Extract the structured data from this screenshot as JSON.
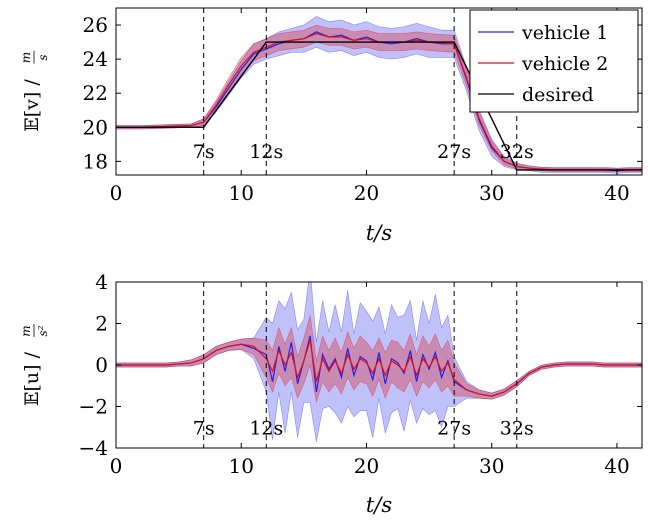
{
  "chart_data": [
    {
      "type": "line",
      "ylabel": {
        "main": "𝔼[v] / ",
        "num": "m",
        "den": "s"
      },
      "xlabel": "t/s",
      "xlim": [
        0,
        42
      ],
      "ylim": [
        17.2,
        27
      ],
      "xticks": [
        0,
        10,
        20,
        30,
        40
      ],
      "yticks": [
        18,
        20,
        22,
        24,
        26
      ],
      "vlines": [
        7,
        12,
        27,
        32
      ],
      "annotations": [
        {
          "x": 7,
          "text": "7s"
        },
        {
          "x": 12,
          "text": "12s"
        },
        {
          "x": 27,
          "text": "27s"
        },
        {
          "x": 32,
          "text": "32s"
        }
      ],
      "annotation_y": 18.6,
      "legend": {
        "position": "top-right",
        "entries": [
          "vehicle 1",
          "vehicle 2",
          "desired"
        ]
      },
      "series": [
        {
          "name": "vehicle 1",
          "color": "#2020ee",
          "x": [
            0,
            2,
            4,
            6,
            7,
            8,
            9,
            10,
            11,
            12,
            13,
            14,
            15,
            16,
            17,
            18,
            19,
            20,
            21,
            22,
            23,
            24,
            25,
            26,
            27,
            28,
            29,
            30,
            31,
            32,
            33,
            34,
            35,
            36,
            37,
            38,
            39,
            40,
            41,
            42
          ],
          "y": [
            20,
            20,
            20.05,
            20.1,
            20.3,
            21.2,
            22.3,
            23.4,
            24.3,
            24.6,
            24.9,
            25.1,
            25.2,
            25.6,
            25.3,
            25.4,
            25.1,
            25.3,
            25.0,
            24.9,
            25.0,
            25.2,
            25.0,
            24.9,
            24.9,
            22.8,
            20.4,
            18.8,
            18.0,
            17.7,
            17.6,
            17.5,
            17.5,
            17.5,
            17.5,
            17.5,
            17.5,
            17.45,
            17.5,
            17.5
          ],
          "band": [
            0.1,
            0.1,
            0.1,
            0.1,
            0.2,
            0.3,
            0.4,
            0.5,
            0.6,
            0.6,
            0.7,
            0.7,
            0.8,
            0.9,
            0.9,
            0.9,
            0.9,
            0.9,
            0.9,
            0.9,
            0.9,
            0.9,
            0.9,
            0.8,
            0.8,
            0.7,
            0.6,
            0.5,
            0.3,
            0.2,
            0.15,
            0.15,
            0.15,
            0.15,
            0.15,
            0.15,
            0.15,
            0.15,
            0.15,
            0.15
          ]
        },
        {
          "name": "vehicle 2",
          "color": "#e01010",
          "x": [
            0,
            2,
            4,
            6,
            7,
            8,
            9,
            10,
            11,
            12,
            13,
            14,
            15,
            16,
            17,
            18,
            19,
            20,
            21,
            22,
            23,
            24,
            25,
            26,
            27,
            28,
            29,
            30,
            31,
            32,
            33,
            34,
            35,
            36,
            37,
            38,
            39,
            40,
            41,
            42
          ],
          "y": [
            20,
            20,
            20.05,
            20.1,
            20.3,
            21.3,
            22.5,
            23.6,
            24.4,
            24.7,
            25.0,
            25.1,
            25.2,
            25.5,
            25.3,
            25.3,
            25.1,
            25.2,
            25.0,
            25.0,
            25.0,
            25.1,
            25.0,
            24.95,
            24.9,
            22.9,
            20.5,
            18.9,
            18.0,
            17.7,
            17.6,
            17.55,
            17.5,
            17.5,
            17.5,
            17.5,
            17.5,
            17.5,
            17.5,
            17.5
          ],
          "band": [
            0.1,
            0.1,
            0.1,
            0.1,
            0.2,
            0.3,
            0.4,
            0.5,
            0.5,
            0.5,
            0.5,
            0.5,
            0.5,
            0.5,
            0.5,
            0.5,
            0.5,
            0.5,
            0.5,
            0.5,
            0.5,
            0.5,
            0.5,
            0.5,
            0.5,
            0.5,
            0.4,
            0.3,
            0.2,
            0.15,
            0.1,
            0.1,
            0.1,
            0.1,
            0.1,
            0.1,
            0.1,
            0.1,
            0.1,
            0.1
          ]
        },
        {
          "name": "desired",
          "color": "#000000",
          "x": [
            0,
            7,
            12,
            27,
            32,
            42
          ],
          "y": [
            20,
            20,
            25,
            25,
            17.5,
            17.5
          ]
        }
      ]
    },
    {
      "type": "line",
      "ylabel": {
        "main": "𝔼[u] / ",
        "num": "m",
        "den": "s²"
      },
      "xlabel": "t/s",
      "xlim": [
        0,
        42
      ],
      "ylim": [
        -4,
        4
      ],
      "xticks": [
        0,
        10,
        20,
        30,
        40
      ],
      "yticks": [
        -4,
        -2,
        0,
        2,
        4
      ],
      "vlines": [
        7,
        12,
        27,
        32
      ],
      "annotations": [
        {
          "x": 7,
          "text": "7s"
        },
        {
          "x": 12,
          "text": "12s"
        },
        {
          "x": 27,
          "text": "27s"
        },
        {
          "x": 32,
          "text": "32s"
        }
      ],
      "annotation_y": -3.0,
      "series": [
        {
          "name": "vehicle 1",
          "color": "#2020ee",
          "x": [
            0,
            1,
            2,
            3,
            4,
            5,
            6,
            7,
            8,
            9,
            10,
            11,
            12,
            12.5,
            13,
            13.5,
            14,
            14.5,
            15,
            15.5,
            16,
            16.5,
            17,
            17.5,
            18,
            18.5,
            19,
            19.5,
            20,
            20.5,
            21,
            21.5,
            22,
            22.5,
            23,
            23.5,
            24,
            24.5,
            25,
            25.5,
            26,
            26.5,
            27,
            28,
            29,
            30,
            31,
            32,
            33,
            34,
            35,
            36,
            37,
            38,
            39,
            40,
            41,
            42
          ],
          "y": [
            0,
            0,
            0,
            0,
            0,
            0.05,
            0.1,
            0.3,
            0.7,
            0.9,
            1.0,
            0.8,
            0.5,
            -0.8,
            0.9,
            -0.3,
            1.1,
            -0.9,
            0.2,
            1.4,
            -1.3,
            0.5,
            -0.2,
            0.3,
            -0.6,
            0.8,
            -0.5,
            0.4,
            0.2,
            -0.7,
            0.6,
            -0.9,
            0.3,
            0.1,
            -0.4,
            0.7,
            -0.8,
            0.5,
            -0.2,
            0.6,
            -0.6,
            0.2,
            -0.8,
            -1.2,
            -1.4,
            -1.5,
            -1.3,
            -0.9,
            -0.4,
            -0.1,
            0.0,
            0.05,
            0.05,
            0.05,
            0.0,
            0.0,
            0.0,
            0.0
          ],
          "band": [
            0.1,
            0.1,
            0.1,
            0.1,
            0.1,
            0.1,
            0.15,
            0.2,
            0.2,
            0.2,
            0.25,
            0.5,
            1.8,
            2.8,
            2.2,
            3.0,
            2.4,
            2.6,
            2.0,
            3.2,
            2.4,
            2.6,
            1.8,
            2.6,
            2.2,
            2.8,
            2.0,
            2.6,
            2.4,
            2.8,
            2.2,
            2.4,
            2.6,
            2.2,
            2.8,
            2.4,
            2.0,
            2.6,
            2.2,
            2.8,
            2.4,
            2.2,
            1.2,
            0.4,
            0.2,
            0.15,
            0.15,
            0.15,
            0.1,
            0.1,
            0.1,
            0.1,
            0.1,
            0.1,
            0.1,
            0.1,
            0.1,
            0.1
          ]
        },
        {
          "name": "vehicle 2",
          "color": "#e01010",
          "x": [
            0,
            1,
            2,
            3,
            4,
            5,
            6,
            7,
            8,
            9,
            10,
            11,
            12,
            12.5,
            13,
            13.5,
            14,
            14.5,
            15,
            15.5,
            16,
            16.5,
            17,
            17.5,
            18,
            18.5,
            19,
            19.5,
            20,
            20.5,
            21,
            21.5,
            22,
            22.5,
            23,
            23.5,
            24,
            24.5,
            25,
            25.5,
            26,
            26.5,
            27,
            28,
            29,
            30,
            31,
            32,
            33,
            34,
            35,
            36,
            37,
            38,
            39,
            40,
            41,
            42
          ],
          "y": [
            0,
            0,
            0,
            0,
            0,
            0.05,
            0.1,
            0.3,
            0.7,
            0.9,
            1.0,
            0.9,
            0.3,
            -0.3,
            0.7,
            0.0,
            0.6,
            -0.6,
            0.2,
            1.2,
            -0.8,
            0.3,
            -0.3,
            0.2,
            -0.4,
            0.5,
            -0.2,
            0.3,
            0.1,
            -0.4,
            0.3,
            -0.5,
            0.2,
            0.0,
            -0.3,
            0.4,
            -0.5,
            0.3,
            -0.1,
            0.4,
            -0.3,
            0.1,
            -0.7,
            -1.2,
            -1.4,
            -1.5,
            -1.3,
            -0.9,
            -0.4,
            -0.1,
            0.0,
            0.05,
            0.05,
            0.05,
            0.0,
            0.0,
            0.0,
            0.0
          ],
          "band": [
            0.1,
            0.1,
            0.1,
            0.1,
            0.1,
            0.1,
            0.15,
            0.2,
            0.2,
            0.2,
            0.25,
            0.4,
            0.9,
            1.0,
            1.1,
            1.0,
            1.2,
            1.0,
            1.1,
            1.2,
            1.0,
            1.1,
            1.0,
            1.1,
            1.0,
            1.1,
            1.0,
            1.1,
            1.0,
            1.1,
            1.0,
            1.1,
            1.0,
            1.1,
            1.0,
            1.1,
            1.0,
            1.1,
            1.0,
            1.1,
            1.0,
            1.1,
            0.8,
            0.3,
            0.2,
            0.15,
            0.15,
            0.15,
            0.1,
            0.1,
            0.1,
            0.1,
            0.1,
            0.1,
            0.1,
            0.1,
            0.1,
            0.1
          ]
        }
      ]
    }
  ]
}
